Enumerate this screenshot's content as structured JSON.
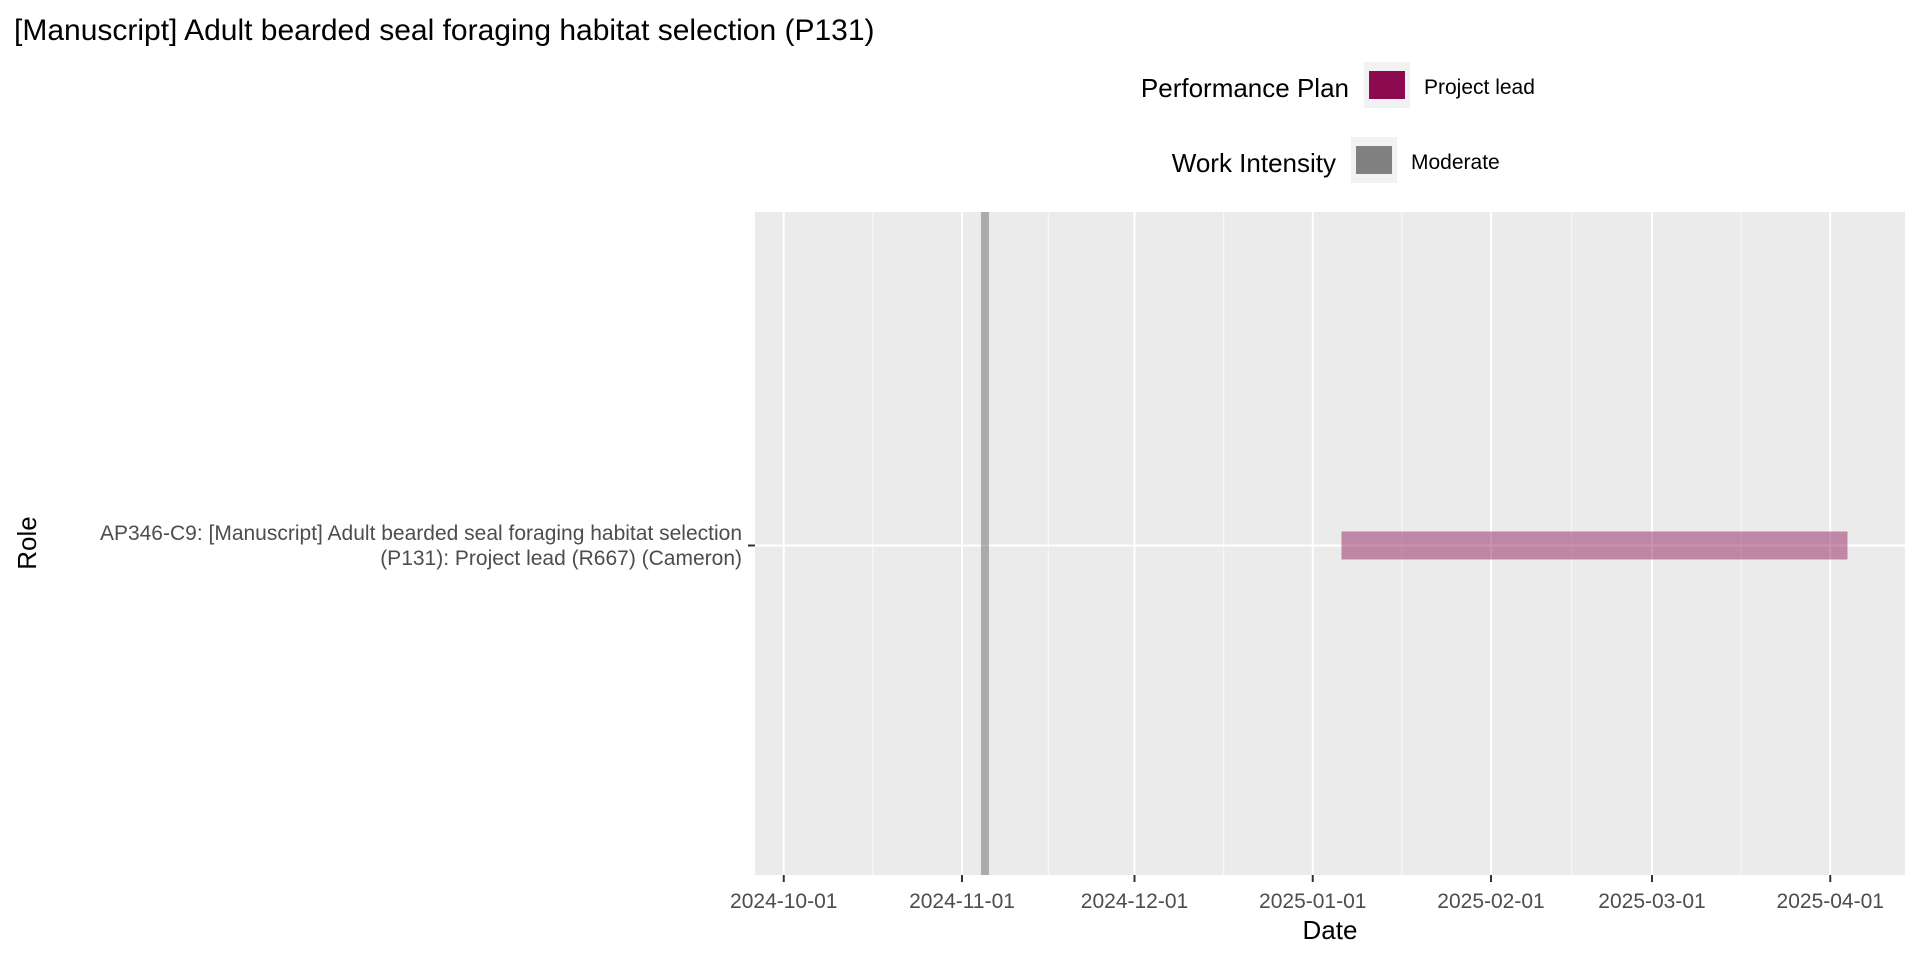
{
  "chart_data": {
    "type": "gantt",
    "title": "[Manuscript] Adult bearded seal foraging habitat selection (P131)",
    "xlabel": "Date",
    "ylabel": "Role",
    "x_ticks": [
      "2024-10-01",
      "2024-11-01",
      "2024-12-01",
      "2025-01-01",
      "2025-02-01",
      "2025-03-01",
      "2025-04-01"
    ],
    "xlim": [
      "2024-09-26",
      "2025-04-14"
    ],
    "grid": true,
    "legend_position": "top",
    "legends": [
      {
        "title": "Performance Plan",
        "items": [
          {
            "label": "Project lead",
            "color": "#8B0A50"
          }
        ]
      },
      {
        "title": "Work Intensity",
        "items": [
          {
            "label": "Moderate",
            "color": "#808080"
          }
        ]
      }
    ],
    "rows": [
      {
        "label": "AP346-C9: [Manuscript] Adult bearded seal foraging habitat selection\n(P131): Project lead (R667) (Cameron)",
        "label_lines": [
          "AP346-C9: [Manuscript] Adult bearded seal foraging habitat selection",
          "(P131): Project lead (R667) (Cameron)"
        ],
        "start": "2025-01-06",
        "end": "2025-04-04",
        "performance_plan": "Project lead",
        "color": "#8B0A50"
      }
    ],
    "markers": [
      {
        "date": "2024-11-05",
        "work_intensity": "Moderate",
        "color": "#808080"
      }
    ]
  }
}
